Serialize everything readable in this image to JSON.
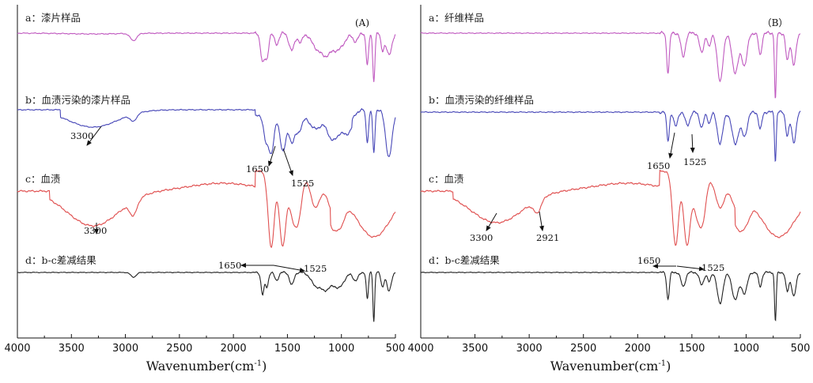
{
  "chart_data": [
    {
      "type": "line",
      "panel_label": "(A)",
      "xlabel": "Wavenumber(cm",
      "xlabel_sup": "-1",
      "xlabel_close": ")",
      "xlim": [
        4000,
        500
      ],
      "xticks": [
        4000,
        3500,
        3000,
        2500,
        2000,
        1500,
        1000,
        500
      ],
      "series": [
        {
          "name": "a：漆片样品",
          "color": "#c05ac0"
        },
        {
          "name": "b：血渍污染的漆片样品",
          "color": "#4848b8"
        },
        {
          "name": "c：血渍",
          "color": "#e05050"
        },
        {
          "name": "d：b-c差减结果",
          "color": "#222222"
        }
      ],
      "annotations": [
        {
          "series": 1,
          "text": "3300"
        },
        {
          "series": 1,
          "text": "1650"
        },
        {
          "series": 1,
          "text": "1525"
        },
        {
          "series": 2,
          "text": "3300"
        },
        {
          "series": 3,
          "text": "1650"
        },
        {
          "series": 3,
          "text": "1525"
        }
      ]
    },
    {
      "type": "line",
      "panel_label": "（B）",
      "xlabel": "Wavenumber(cm",
      "xlabel_sup": "-1",
      "xlabel_close": ")",
      "xlim": [
        4000,
        500
      ],
      "xticks": [
        4000,
        3500,
        3000,
        2500,
        2000,
        1500,
        1000,
        500
      ],
      "series": [
        {
          "name": "a：纤维样品",
          "color": "#c05ac0"
        },
        {
          "name": "b：血渍污染的纤维样品",
          "color": "#4848b8"
        },
        {
          "name": "c：血渍",
          "color": "#e05050"
        },
        {
          "name": "d：b-c差减结果",
          "color": "#222222"
        }
      ],
      "annotations": [
        {
          "series": 1,
          "text": "1650"
        },
        {
          "series": 1,
          "text": "1525"
        },
        {
          "series": 2,
          "text": "3300"
        },
        {
          "series": 2,
          "text": "2921"
        },
        {
          "series": 3,
          "text": "1650"
        },
        {
          "series": 3,
          "text": "1525"
        }
      ]
    }
  ]
}
